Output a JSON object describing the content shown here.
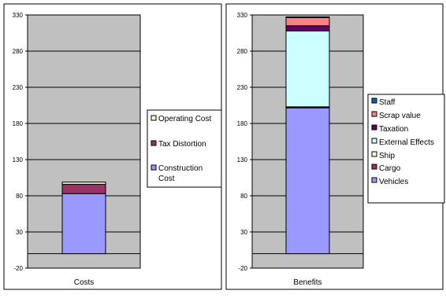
{
  "colors": {
    "plot_bg": "#c0c0c0",
    "gridline": "#000000",
    "border": "#000000"
  },
  "chart_data": [
    {
      "type": "bar",
      "stacked": true,
      "title": "",
      "xlabel": "",
      "ylabel": "",
      "ylim": [
        -20,
        330
      ],
      "yticks": [
        -20,
        30,
        80,
        130,
        180,
        230,
        280,
        330
      ],
      "grid": true,
      "legend_position": "right",
      "categories": [
        "Costs"
      ],
      "series": [
        {
          "name": "Construction Cost",
          "values": [
            83
          ],
          "color": "#9999ff"
        },
        {
          "name": "Tax Distortion",
          "values": [
            13
          ],
          "color": "#993366"
        },
        {
          "name": "Operating Cost",
          "values": [
            3
          ],
          "color": "#ffffcc"
        }
      ],
      "legend_order": [
        "Operating Cost",
        "Tax Distortion",
        "Construction Cost"
      ]
    },
    {
      "type": "bar",
      "stacked": true,
      "title": "",
      "xlabel": "",
      "ylabel": "",
      "ylim": [
        -20,
        330
      ],
      "yticks": [
        -20,
        30,
        80,
        130,
        180,
        230,
        280,
        330
      ],
      "grid": true,
      "legend_position": "right",
      "categories": [
        "Benefits"
      ],
      "series": [
        {
          "name": "Vehicles",
          "values": [
            202
          ],
          "color": "#9999ff"
        },
        {
          "name": "Cargo",
          "values": [
            0.5
          ],
          "color": "#993366"
        },
        {
          "name": "Ship",
          "values": [
            0.5
          ],
          "color": "#ffffcc"
        },
        {
          "name": "External Effects",
          "values": [
            105
          ],
          "color": "#ccffff"
        },
        {
          "name": "Taxation",
          "values": [
            7
          ],
          "color": "#660066"
        },
        {
          "name": "Scrap value",
          "values": [
            12
          ],
          "color": "#ff8080"
        },
        {
          "name": "Staff",
          "values": [
            0.3
          ],
          "color": "#0066cc"
        }
      ],
      "legend_order": [
        "Staff",
        "Scrap value",
        "Taxation",
        "External Effects",
        "Ship",
        "Cargo",
        "Vehicles"
      ]
    }
  ]
}
